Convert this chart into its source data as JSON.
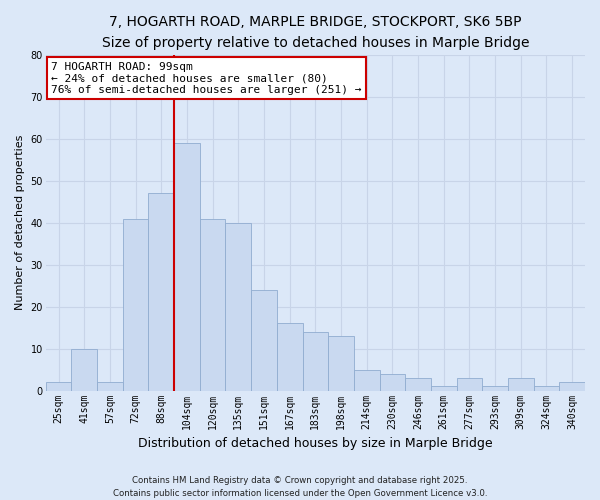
{
  "title": "7, HOGARTH ROAD, MARPLE BRIDGE, STOCKPORT, SK6 5BP",
  "subtitle": "Size of property relative to detached houses in Marple Bridge",
  "xlabel": "Distribution of detached houses by size in Marple Bridge",
  "ylabel": "Number of detached properties",
  "bar_labels": [
    "25sqm",
    "41sqm",
    "57sqm",
    "72sqm",
    "88sqm",
    "104sqm",
    "120sqm",
    "135sqm",
    "151sqm",
    "167sqm",
    "183sqm",
    "198sqm",
    "214sqm",
    "230sqm",
    "246sqm",
    "261sqm",
    "277sqm",
    "293sqm",
    "309sqm",
    "324sqm",
    "340sqm"
  ],
  "bar_values": [
    2,
    10,
    2,
    41,
    47,
    59,
    41,
    40,
    24,
    16,
    14,
    13,
    5,
    4,
    3,
    1,
    3,
    1,
    3,
    1,
    2
  ],
  "bar_color": "#c9d9f0",
  "bar_edge_color": "#90acd0",
  "vline_index": 5,
  "vline_color": "#cc0000",
  "ylim": [
    0,
    80
  ],
  "yticks": [
    0,
    10,
    20,
    30,
    40,
    50,
    60,
    70,
    80
  ],
  "annotation_title": "7 HOGARTH ROAD: 99sqm",
  "annotation_line1": "← 24% of detached houses are smaller (80)",
  "annotation_line2": "76% of semi-detached houses are larger (251) →",
  "annotation_box_facecolor": "#ffffff",
  "annotation_box_edgecolor": "#cc0000",
  "grid_color": "#c8d4e8",
  "background_color": "#dce8f8",
  "title_fontsize": 10,
  "subtitle_fontsize": 9,
  "ylabel_fontsize": 8,
  "xlabel_fontsize": 9,
  "tick_fontsize": 7,
  "annotation_fontsize": 8,
  "footer1": "Contains HM Land Registry data © Crown copyright and database right 2025.",
  "footer2": "Contains public sector information licensed under the Open Government Licence v3.0."
}
